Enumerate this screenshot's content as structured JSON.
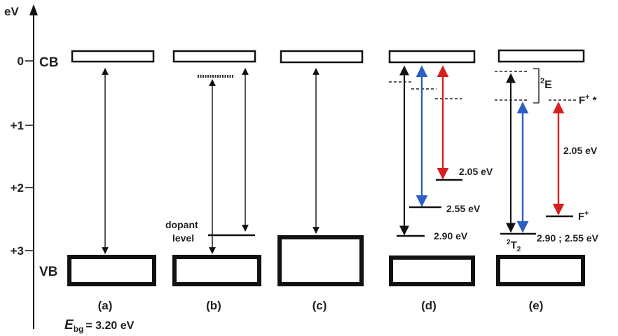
{
  "axis": {
    "unit": "eV",
    "ticks": [
      "0",
      "+1",
      "+2",
      "+3"
    ],
    "cb_label": "CB",
    "vb_label": "VB"
  },
  "panels": [
    "(a)",
    "(b)",
    "(c)",
    "(d)",
    "(e)"
  ],
  "bandgap": {
    "symbol": "E",
    "subscript": "bg",
    "value_text": "= 3.20 eV"
  },
  "panel_b": {
    "dopant_label_1": "dopant",
    "dopant_label_2": "level"
  },
  "panel_d": {
    "levels": [
      {
        "label": "2.05 eV",
        "color": "#d42020"
      },
      {
        "label": "2.55 eV",
        "color": "#2a5fc4"
      },
      {
        "label": "2.90 eV",
        "color": "#111111"
      }
    ]
  },
  "panel_e": {
    "excited_state": {
      "sup": "2",
      "base": "E"
    },
    "ground_state": {
      "sup": "2",
      "base": "T",
      "sub": "2"
    },
    "f_plus_star": {
      "base": "F",
      "sup": "+",
      "star": "*"
    },
    "f_plus": {
      "base": "F",
      "sup": "+"
    },
    "red_label": "2.05 eV",
    "ground_values": "2.90 ; 2.55 eV",
    "colors": {
      "black": "#111111",
      "blue": "#2a5fc4",
      "red": "#d42020"
    }
  }
}
